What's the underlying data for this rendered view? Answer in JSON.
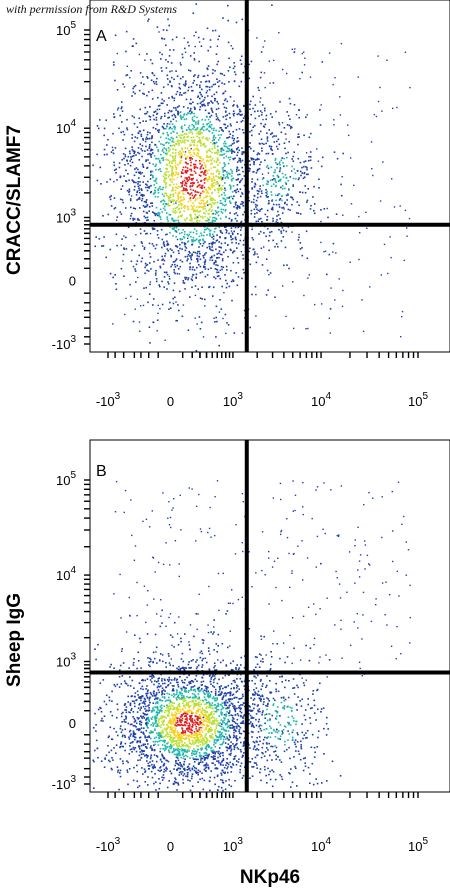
{
  "credit": "with permission from R&D Systems",
  "xlabel": "NKp46",
  "colors": {
    "density_low": "#1f3fa8",
    "density_mid": "#1fb8a8",
    "density_mid_high": "#b8e030",
    "density_high": "#f5d21a",
    "density_peak": "#e02020",
    "quadrant_line": "#000000"
  },
  "chart_data": [
    {
      "type": "scatter",
      "subtype": "flow-cytometry density dot plot",
      "panel": "A",
      "ylabel": "CRACC/SLAMF7",
      "x_ticks": [
        {
          "label": "-10",
          "exp": "3",
          "pos": -1000
        },
        {
          "label": "0",
          "exp": "",
          "pos": 0
        },
        {
          "label": "10",
          "exp": "3",
          "pos": 1000
        },
        {
          "label": "10",
          "exp": "4",
          "pos": 10000
        },
        {
          "label": "10",
          "exp": "5",
          "pos": 100000
        }
      ],
      "y_ticks": [
        {
          "label": "-10",
          "exp": "3",
          "pos": -1000
        },
        {
          "label": "0",
          "exp": "",
          "pos": 0
        },
        {
          "label": "10",
          "exp": "3",
          "pos": 1000
        },
        {
          "label": "10",
          "exp": "4",
          "pos": 10000
        },
        {
          "label": "10",
          "exp": "5",
          "pos": 100000
        }
      ],
      "x_gate": 1500,
      "y_gate": 800,
      "populations": [
        {
          "name": "NKp46- CRACC+",
          "x_center": 200,
          "y_center": 3000,
          "relative_size": 1.0
        },
        {
          "name": "NKp46+ CRACC+",
          "x_center": 3500,
          "y_center": 3000,
          "relative_size": 0.12
        }
      ]
    },
    {
      "type": "scatter",
      "subtype": "flow-cytometry density dot plot",
      "panel": "B",
      "ylabel": "Sheep IgG",
      "x_ticks": [
        {
          "label": "-10",
          "exp": "3",
          "pos": -1000
        },
        {
          "label": "0",
          "exp": "",
          "pos": 0
        },
        {
          "label": "10",
          "exp": "3",
          "pos": 1000
        },
        {
          "label": "10",
          "exp": "4",
          "pos": 10000
        },
        {
          "label": "10",
          "exp": "5",
          "pos": 100000
        }
      ],
      "y_ticks": [
        {
          "label": "-10",
          "exp": "3",
          "pos": -1000
        },
        {
          "label": "0",
          "exp": "",
          "pos": 0
        },
        {
          "label": "10",
          "exp": "3",
          "pos": 1000
        },
        {
          "label": "10",
          "exp": "4",
          "pos": 10000
        },
        {
          "label": "10",
          "exp": "5",
          "pos": 100000
        }
      ],
      "x_gate": 1500,
      "y_gate": 700,
      "populations": [
        {
          "name": "NKp46- IgG-",
          "x_center": 150,
          "y_center": 0,
          "relative_size": 1.0
        },
        {
          "name": "NKp46+ IgG-",
          "x_center": 3500,
          "y_center": 0,
          "relative_size": 0.12
        }
      ]
    }
  ]
}
